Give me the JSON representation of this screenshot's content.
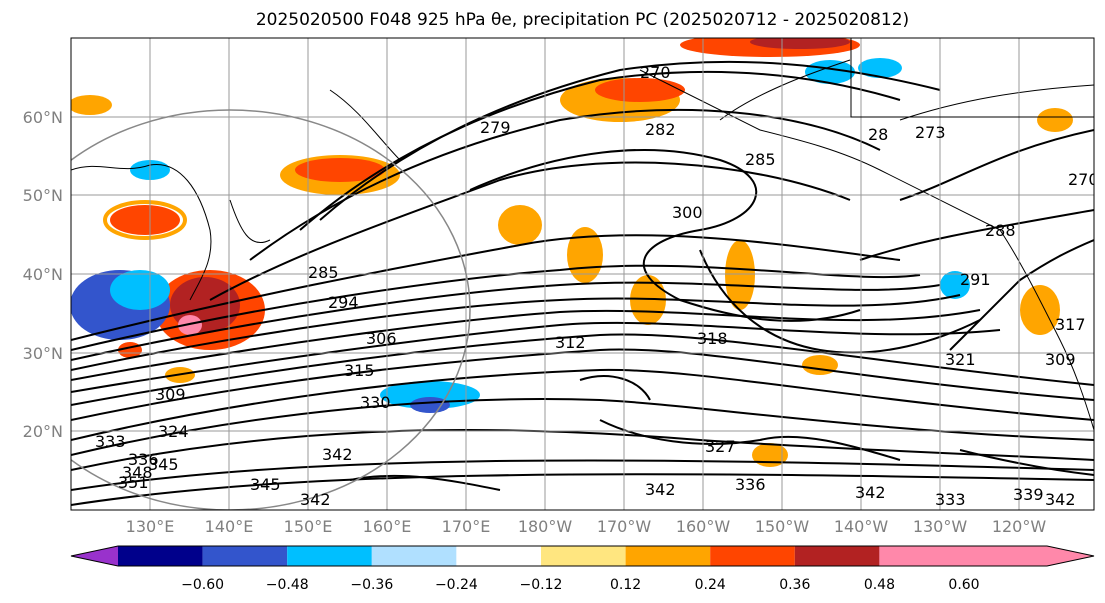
{
  "title": "2025020500 F048 925 hPa θe, precipitation PC (2025020712 - 2025020812)",
  "lat_labels": [
    "60°N",
    "50°N",
    "40°N",
    "30°N",
    "20°N"
  ],
  "lon_labels": [
    "130°E",
    "140°E",
    "150°E",
    "160°E",
    "170°E",
    "180°W",
    "170°W",
    "160°W",
    "150°W",
    "140°W",
    "130°W",
    "120°W"
  ],
  "contour_labels": [
    "270",
    "279",
    "282",
    "285",
    "28",
    "273",
    "285",
    "294",
    "300",
    "306",
    "312",
    "315",
    "309",
    "318",
    "324",
    "333",
    "330",
    "336",
    "342",
    "342",
    "345",
    "348",
    "345",
    "351",
    "342",
    "327",
    "336",
    "342",
    "333",
    "339",
    "342",
    "321",
    "291",
    "288",
    "270",
    "317",
    "309"
  ],
  "colorbar": {
    "ticks": [
      "−0.60",
      "−0.48",
      "−0.36",
      "−0.24",
      "−0.12",
      "0.12",
      "0.24",
      "0.36",
      "0.48",
      "0.60"
    ],
    "colors": [
      "#9932cc",
      "#00008b",
      "#3355cc",
      "#00bfff",
      "#b0e0ff",
      "#ffffff",
      "#ffe680",
      "#ffa500",
      "#ff4500",
      "#b22222",
      "#ff88aa"
    ]
  }
}
